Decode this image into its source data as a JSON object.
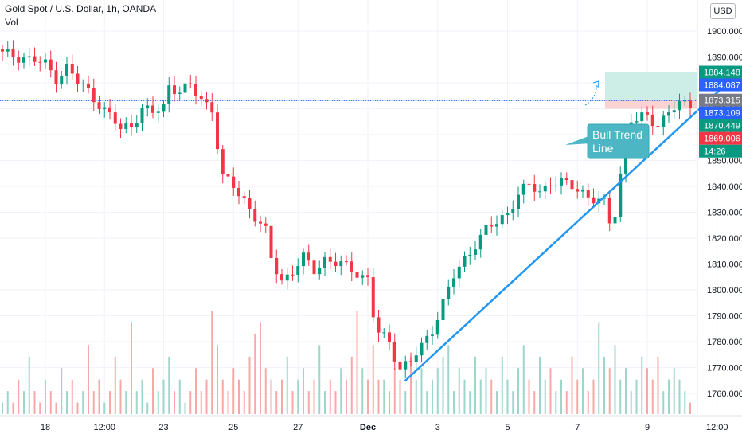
{
  "header": {
    "title": "Gold Spot / U.S. Dollar, 1h, OANDA",
    "volume_label": "Vol",
    "currency": "USD"
  },
  "chart_data": {
    "type": "candlestick",
    "title": "Gold Spot / U.S. Dollar, 1h, OANDA",
    "ylim": [
      1752,
      1912
    ],
    "y_ticks": [
      1760,
      1770,
      1780,
      1790,
      1800,
      1810,
      1820,
      1830,
      1840,
      1850,
      1860,
      1870,
      1880,
      1890,
      1900
    ],
    "y_tick_labels": [
      "1760.000",
      "1770.000",
      "1780.000",
      "1790.000",
      "1800.000",
      "1810.000",
      "1820.000",
      "1830.000",
      "1840.000",
      "1850.000",
      "1860.000",
      "1870.000",
      "1880.000",
      "1890.000",
      "1900.000"
    ],
    "x_tick_labels": [
      "18",
      "12:00",
      "23",
      "25",
      "27",
      "Dec",
      "3",
      "5",
      "7",
      "9",
      "12:00"
    ],
    "close_path": [
      [
        0,
        1891
      ],
      [
        4,
        1890
      ],
      [
        8,
        1887
      ],
      [
        10,
        1882
      ],
      [
        12,
        1886
      ],
      [
        14,
        1880
      ],
      [
        16,
        1877
      ],
      [
        18,
        1872
      ],
      [
        20,
        1867
      ],
      [
        22,
        1862
      ],
      [
        24,
        1864
      ],
      [
        26,
        1870
      ],
      [
        28,
        1868
      ],
      [
        30,
        1871
      ],
      [
        31,
        1879
      ],
      [
        33,
        1877
      ],
      [
        35,
        1878
      ],
      [
        37,
        1874
      ],
      [
        39,
        1870
      ],
      [
        40,
        1856
      ],
      [
        41,
        1843
      ],
      [
        43,
        1840
      ],
      [
        45,
        1835
      ],
      [
        47,
        1828
      ],
      [
        49,
        1822
      ],
      [
        50,
        1812
      ],
      [
        52,
        1804
      ],
      [
        54,
        1807
      ],
      [
        56,
        1812
      ],
      [
        58,
        1808
      ],
      [
        60,
        1812
      ],
      [
        62,
        1810
      ],
      [
        64,
        1809
      ],
      [
        66,
        1807
      ],
      [
        68,
        1804
      ],
      [
        69,
        1790
      ],
      [
        70,
        1783
      ],
      [
        72,
        1780
      ],
      [
        74,
        1770
      ],
      [
        76,
        1772
      ],
      [
        78,
        1778
      ],
      [
        80,
        1785
      ],
      [
        82,
        1795
      ],
      [
        84,
        1805
      ],
      [
        86,
        1812
      ],
      [
        88,
        1818
      ],
      [
        90,
        1823
      ],
      [
        92,
        1826
      ],
      [
        94,
        1830
      ],
      [
        96,
        1837
      ],
      [
        98,
        1840
      ],
      [
        100,
        1838
      ],
      [
        102,
        1842
      ],
      [
        104,
        1841
      ],
      [
        106,
        1840
      ],
      [
        108,
        1838
      ],
      [
        110,
        1835
      ],
      [
        112,
        1833
      ],
      [
        113,
        1826
      ],
      [
        114,
        1830
      ],
      [
        115,
        1845
      ],
      [
        116,
        1860
      ],
      [
        117,
        1866
      ],
      [
        118,
        1865
      ],
      [
        120,
        1867
      ],
      [
        122,
        1864
      ],
      [
        124,
        1869
      ],
      [
        126,
        1871
      ],
      [
        128,
        1872
      ]
    ],
    "volume": [
      1,
      2,
      1,
      3,
      2,
      5,
      2,
      1,
      3,
      2,
      1,
      4,
      2,
      3,
      1,
      2,
      6,
      2,
      3,
      1,
      2,
      5,
      3,
      2,
      8,
      2,
      3,
      1,
      4,
      2,
      3,
      5,
      2,
      3,
      1,
      2,
      4,
      2,
      3,
      9,
      6,
      3,
      2,
      4,
      3,
      2,
      5,
      7,
      8,
      4,
      3,
      2,
      3,
      5,
      2,
      3,
      4,
      2,
      3,
      6,
      2,
      3,
      2,
      4,
      3,
      5,
      9,
      4,
      3,
      6,
      3,
      3,
      2,
      4,
      3,
      2,
      5,
      3,
      4,
      2,
      3,
      4,
      5,
      6,
      2,
      4,
      3,
      2,
      5,
      3,
      4,
      3,
      2,
      5,
      3,
      2,
      4,
      6,
      3,
      2,
      5,
      3,
      4,
      2,
      3,
      2,
      5,
      3,
      4,
      2,
      3,
      8,
      5,
      4,
      6,
      3,
      4,
      2,
      3,
      5,
      4,
      3,
      5,
      2,
      3,
      4,
      3,
      2,
      1
    ],
    "horizontal_levels": [
      {
        "value": 1884.148,
        "label": "1884.148",
        "color": "#089981"
      },
      {
        "value": 1873.315,
        "label": "1873.315",
        "color": "#2962ff"
      }
    ],
    "price_labels": [
      {
        "value": 1884.148,
        "label": "1884.148",
        "bg": "#089981"
      },
      {
        "value": 1884.087,
        "label": "1884.087",
        "bg": "#2962ff"
      },
      {
        "value": 1873.315,
        "label": "1873.315",
        "bg": "#787b86"
      },
      {
        "value": 1873.109,
        "label": "1873.109",
        "bg": "#2962ff"
      },
      {
        "value": 1870.449,
        "label": "1870.449",
        "bg": "#089981"
      },
      {
        "value": 1866.0,
        "label": "14:26",
        "bg": "#089981"
      },
      {
        "value": 1869.006,
        "label": "1869.006",
        "bg": "#f23645"
      }
    ],
    "trend_line": {
      "from": [
        75,
        1765
      ],
      "to": [
        136,
        1882
      ]
    },
    "position": {
      "entry": 1873.315,
      "target": 1884.148,
      "stop": 1870.0
    },
    "annotation": {
      "text": "Bull Trend Line"
    },
    "colors": {
      "up": "#089981",
      "down": "#f23645",
      "trend": "#2196f3",
      "level": "#2962ff",
      "callout": "#4cb6c4"
    }
  }
}
